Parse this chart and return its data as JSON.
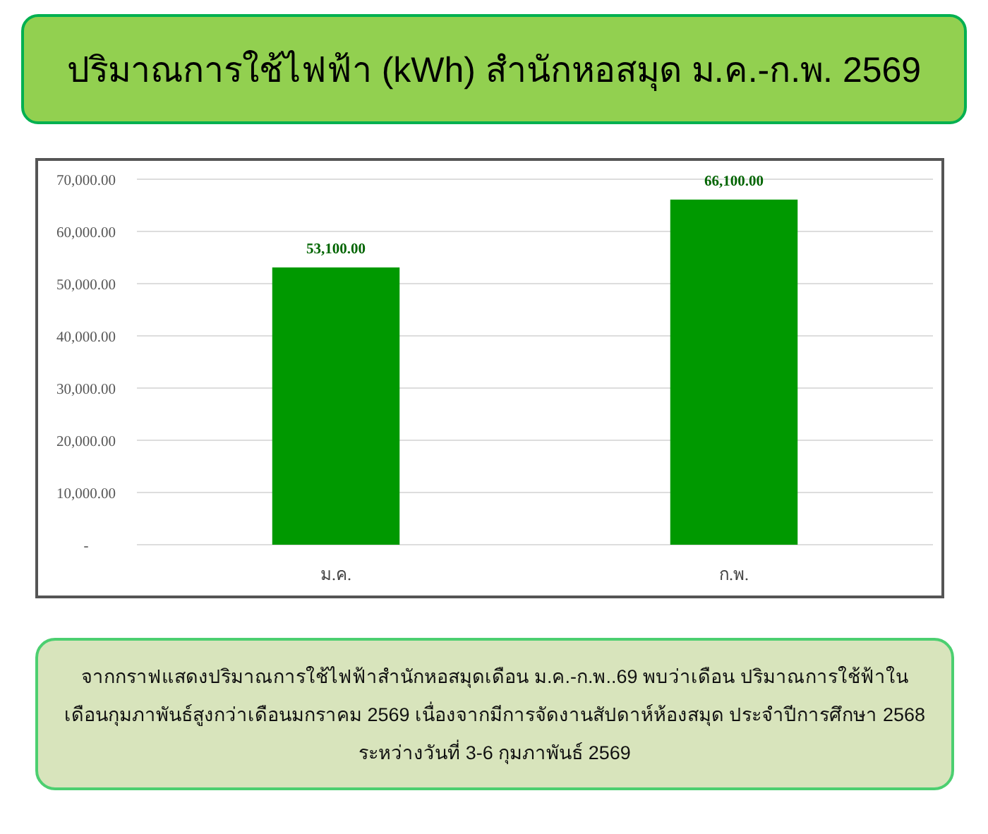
{
  "chart_data": {
    "type": "bar",
    "title": "ปริมาณการใช้ไฟฟ้า (kWh) สำนักหอสมุด ม.ค.-ก.พ. 2569",
    "categories": [
      "ม.ค.",
      "ก.พ."
    ],
    "values": [
      53100,
      66100
    ],
    "value_labels": [
      "53,100.00",
      "66,100.00"
    ],
    "color": "#009900",
    "ylim": [
      0,
      70000
    ],
    "yticks": [
      {
        "value": 0,
        "label": "-"
      },
      {
        "value": 10000,
        "label": "10,000.00"
      },
      {
        "value": 20000,
        "label": "20,000.00"
      },
      {
        "value": 30000,
        "label": "30,000.00"
      },
      {
        "value": 40000,
        "label": "40,000.00"
      },
      {
        "value": 50000,
        "label": "50,000.00"
      },
      {
        "value": 60000,
        "label": "60,000.00"
      },
      {
        "value": 70000,
        "label": "70,000.00"
      }
    ],
    "grid": "y",
    "annotations": [
      "จากกราฟแสดงปริมาณการใช้ไฟฟ้าสำนักหอสมุดเดือน ม.ค.-ก.พ..69 พบว่าเดือน ปริมาณการใช้ฟ้าในเดือนกุมภาพันธ์สูงกว่าเดือนมกราคม 2569 เนื่องจากมีการจัดงานสัปดาห์ห้องสมุด ประจำปีการศึกษา 2568 ระหว่างวันที่ 3-6 กุมภาพันธ์ 2569"
    ]
  }
}
